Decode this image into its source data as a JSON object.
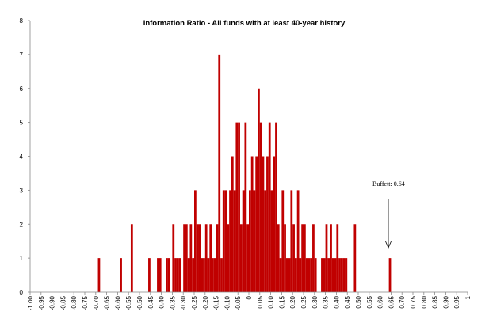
{
  "chart_data": {
    "type": "histogram",
    "title": "Information Ratio - All funds with at least 40-year history",
    "annotation": "Buffett: 0.64",
    "color": "#c00000",
    "bins": [
      -1,
      -0.99,
      -0.98,
      -0.97,
      -0.96,
      -0.95,
      -0.94,
      -0.93,
      -0.92,
      -0.91,
      -0.9,
      -0.89,
      -0.88,
      -0.87,
      -0.86,
      -0.85,
      -0.84,
      -0.83,
      -0.82,
      -0.81,
      -0.8,
      -0.79,
      -0.78,
      -0.77,
      -0.76,
      -0.75,
      -0.74,
      -0.73,
      -0.72,
      -0.71,
      -0.7,
      -0.69,
      -0.68,
      -0.67,
      -0.66,
      -0.65,
      -0.64,
      -0.63,
      -0.62,
      -0.61,
      -0.6,
      -0.59,
      -0.58,
      -0.57,
      -0.56,
      -0.55,
      -0.54,
      -0.53,
      -0.52,
      -0.51,
      -0.5,
      -0.49,
      -0.48,
      -0.47,
      -0.46,
      -0.45,
      -0.44,
      -0.43,
      -0.42,
      -0.41,
      -0.4,
      -0.39,
      -0.38,
      -0.37,
      -0.36,
      -0.35,
      -0.34,
      -0.33,
      -0.32,
      -0.31,
      -0.3,
      -0.29,
      -0.28,
      -0.27,
      -0.26,
      -0.25,
      -0.24,
      -0.23,
      -0.22,
      -0.21,
      -0.2,
      -0.19,
      -0.18,
      -0.17,
      -0.16,
      -0.15,
      -0.14,
      -0.13,
      -0.12,
      -0.11,
      -0.1,
      -0.09,
      -0.08,
      -0.07,
      -0.06,
      -0.05,
      -0.04,
      -0.03,
      -0.02,
      -0.01,
      0,
      0.01,
      0.02,
      0.03,
      0.04,
      0.05,
      0.06,
      0.07,
      0.08,
      0.09,
      0.1,
      0.11,
      0.12,
      0.13,
      0.14,
      0.15,
      0.16,
      0.17,
      0.18,
      0.19,
      0.2,
      0.21,
      0.22,
      0.23,
      0.24,
      0.25,
      0.26,
      0.27,
      0.28,
      0.29,
      0.3,
      0.31,
      0.32,
      0.33,
      0.34,
      0.35,
      0.36,
      0.37,
      0.38,
      0.39,
      0.4,
      0.41,
      0.42,
      0.43,
      0.44,
      0.45,
      0.46,
      0.47,
      0.48,
      0.49,
      0.5,
      0.51,
      0.52,
      0.53,
      0.54,
      0.55,
      0.56,
      0.57,
      0.58,
      0.59,
      0.6,
      0.61,
      0.62,
      0.63,
      0.64,
      0.65,
      0.66,
      0.67,
      0.68,
      0.69,
      0.7,
      0.71,
      0.72,
      0.73,
      0.74,
      0.75,
      0.76,
      0.77,
      0.78,
      0.79,
      0.8,
      0.81,
      0.82,
      0.83,
      0.84,
      0.85,
      0.86,
      0.87,
      0.88,
      0.89,
      0.9,
      0.91,
      0.92,
      0.93,
      0.94,
      0.95,
      0.96,
      0.97,
      0.98,
      0.99,
      1
    ],
    "counts": [
      0,
      0,
      0,
      0,
      0,
      0,
      0,
      0,
      0,
      0,
      0,
      0,
      0,
      0,
      0,
      0,
      0,
      0,
      0,
      0,
      0,
      0,
      0,
      0,
      0,
      0,
      0,
      0,
      0,
      0,
      0,
      1,
      0,
      0,
      0,
      0,
      0,
      0,
      0,
      0,
      0,
      1,
      0,
      0,
      0,
      0,
      2,
      0,
      0,
      0,
      0,
      0,
      0,
      0,
      1,
      0,
      0,
      0,
      1,
      1,
      0,
      0,
      1,
      1,
      0,
      2,
      1,
      1,
      1,
      0,
      2,
      2,
      1,
      2,
      1,
      3,
      2,
      2,
      1,
      1,
      2,
      1,
      2,
      1,
      1,
      2,
      7,
      1,
      3,
      3,
      2,
      3,
      4,
      3,
      5,
      5,
      2,
      3,
      5,
      2,
      3,
      4,
      3,
      4,
      6,
      5,
      4,
      3,
      4,
      5,
      3,
      4,
      5,
      2,
      1,
      3,
      2,
      1,
      1,
      3,
      2,
      1,
      3,
      1,
      2,
      2,
      1,
      1,
      1,
      2,
      1,
      0,
      0,
      1,
      1,
      2,
      1,
      2,
      1,
      1,
      2,
      1,
      1,
      1,
      1,
      0,
      0,
      0,
      2,
      0,
      0,
      0,
      0,
      0,
      0,
      0,
      0,
      0,
      0,
      0,
      0,
      0,
      0,
      0,
      1,
      0,
      0,
      0,
      0,
      0,
      0,
      0,
      0,
      0,
      0,
      0,
      0,
      0,
      0,
      0,
      0,
      0,
      0,
      0,
      0,
      0,
      0,
      0,
      0,
      0,
      0,
      0,
      0,
      0,
      0,
      0,
      0,
      0,
      0,
      0
    ],
    "xlim": [
      -1,
      1
    ],
    "xticks": [
      {
        "value": -1,
        "label": "-1.00"
      },
      -0.95,
      {
        "value": -0.9,
        "label": "-0.90"
      },
      -0.85,
      {
        "value": -0.8,
        "label": "-0.80"
      },
      -0.75,
      {
        "value": -0.7,
        "label": "-0.70"
      },
      -0.65,
      {
        "value": -0.6,
        "label": "-0.60"
      },
      -0.55,
      {
        "value": -0.5,
        "label": "-0.50"
      },
      -0.45,
      {
        "value": -0.4,
        "label": "-0.40"
      },
      -0.35,
      {
        "value": -0.3,
        "label": "-0.30"
      },
      -0.25,
      {
        "value": -0.2,
        "label": "-0.20"
      },
      -0.15,
      {
        "value": -0.1,
        "label": "-0.10"
      },
      -0.05,
      0,
      0.05,
      {
        "value": 0.1,
        "label": "0.10"
      },
      0.15,
      {
        "value": 0.2,
        "label": "0.20"
      },
      0.25,
      {
        "value": 0.3,
        "label": "0.30"
      },
      0.35,
      {
        "value": 0.4,
        "label": "0.40"
      },
      0.45,
      {
        "value": 0.5,
        "label": "0.50"
      },
      0.55,
      {
        "value": 0.6,
        "label": "0.60"
      },
      0.65,
      {
        "value": 0.7,
        "label": "0.70"
      },
      0.75,
      {
        "value": 0.8,
        "label": "0.80"
      },
      0.85,
      {
        "value": 0.9,
        "label": "0.90"
      },
      0.95,
      1
    ],
    "ylim": [
      0,
      8
    ],
    "yticks": [
      0,
      1,
      2,
      3,
      4,
      5,
      6,
      7,
      8
    ],
    "grid": false
  }
}
